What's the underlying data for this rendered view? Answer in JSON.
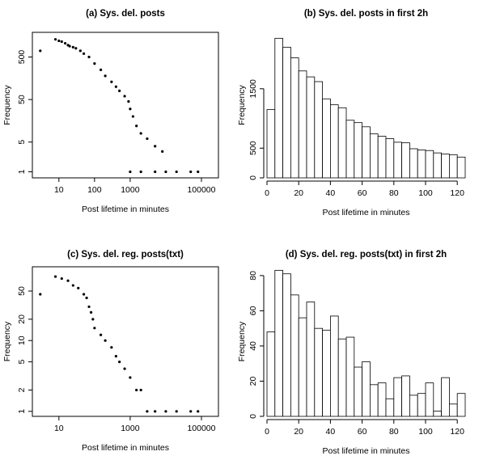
{
  "chart_data": [
    {
      "type": "scatter",
      "title": "(a) Sys. del. posts",
      "xlabel": "Post lifetime in minutes",
      "ylabel": "Frequency",
      "xscale": "log",
      "yscale": "log",
      "xlim": [
        1.8,
        300000
      ],
      "ylim": [
        0.72,
        1900
      ],
      "xticks": [
        10,
        100,
        1000,
        100000
      ],
      "xtick_labels": [
        "10",
        "100",
        "1000",
        "100000"
      ],
      "yticks": [
        1,
        5,
        50,
        500
      ],
      "ytick_labels": [
        "1",
        "5",
        "50",
        "500"
      ],
      "grid": false,
      "points": [
        [
          3,
          700
        ],
        [
          8,
          1300
        ],
        [
          10,
          1200
        ],
        [
          12,
          1150
        ],
        [
          15,
          1050
        ],
        [
          18,
          950
        ],
        [
          20,
          900
        ],
        [
          25,
          850
        ],
        [
          30,
          800
        ],
        [
          40,
          700
        ],
        [
          50,
          600
        ],
        [
          70,
          500
        ],
        [
          100,
          350
        ],
        [
          150,
          250
        ],
        [
          200,
          180
        ],
        [
          300,
          130
        ],
        [
          400,
          100
        ],
        [
          500,
          80
        ],
        [
          700,
          60
        ],
        [
          900,
          45
        ],
        [
          1000,
          30
        ],
        [
          1200,
          20
        ],
        [
          1500,
          12
        ],
        [
          2000,
          8
        ],
        [
          3000,
          6
        ],
        [
          5000,
          4
        ],
        [
          8000,
          3
        ],
        [
          1000,
          1
        ],
        [
          2000,
          1
        ],
        [
          5000,
          1
        ],
        [
          10000,
          1
        ],
        [
          20000,
          1
        ],
        [
          50000,
          1
        ],
        [
          80000,
          1
        ]
      ]
    },
    {
      "type": "bar",
      "title": "(b) Sys. del. posts in first 2h",
      "xlabel": "Post lifetime in minutes",
      "ylabel": "Frequency",
      "bin_start": 0,
      "bin_width": 5,
      "values": [
        1150,
        2350,
        2200,
        2020,
        1800,
        1700,
        1620,
        1330,
        1230,
        1180,
        970,
        930,
        860,
        740,
        700,
        660,
        600,
        590,
        490,
        470,
        460,
        420,
        400,
        390,
        350
      ],
      "xlim": [
        0,
        125
      ],
      "ylim": [
        0,
        2450
      ],
      "xticks": [
        0,
        20,
        40,
        60,
        80,
        100,
        120
      ],
      "xtick_labels": [
        "0",
        "20",
        "40",
        "60",
        "80",
        "100",
        "120"
      ],
      "yticks": [
        0,
        500,
        1500
      ],
      "ytick_labels": [
        "0",
        "500",
        "1500"
      ],
      "grid": false
    },
    {
      "type": "scatter",
      "title": "(c) Sys. del. reg. posts(txt)",
      "xlabel": "Post lifetime in minutes",
      "ylabel": "Frequency",
      "xscale": "log",
      "yscale": "log",
      "xlim": [
        1.8,
        300000
      ],
      "ylim": [
        0.85,
        110
      ],
      "xticks": [
        10,
        1000,
        100000
      ],
      "xtick_labels": [
        "10",
        "1000",
        "100000"
      ],
      "yticks": [
        1,
        2,
        5,
        10,
        20,
        50
      ],
      "ytick_labels": [
        "1",
        "2",
        "5",
        "10",
        "20",
        "50"
      ],
      "grid": false,
      "points": [
        [
          3,
          45
        ],
        [
          8,
          80
        ],
        [
          12,
          75
        ],
        [
          18,
          70
        ],
        [
          25,
          60
        ],
        [
          35,
          55
        ],
        [
          50,
          45
        ],
        [
          60,
          40
        ],
        [
          70,
          30
        ],
        [
          80,
          25
        ],
        [
          90,
          20
        ],
        [
          100,
          15
        ],
        [
          150,
          12
        ],
        [
          200,
          10
        ],
        [
          300,
          8
        ],
        [
          400,
          6
        ],
        [
          500,
          5
        ],
        [
          700,
          4
        ],
        [
          1000,
          3
        ],
        [
          1500,
          2
        ],
        [
          2000,
          2
        ],
        [
          3000,
          1
        ],
        [
          5000,
          1
        ],
        [
          10000,
          1
        ],
        [
          20000,
          1
        ],
        [
          50000,
          1
        ],
        [
          80000,
          1
        ]
      ]
    },
    {
      "type": "bar",
      "title": "(d) Sys. del. reg. posts(txt) in first 2h",
      "xlabel": "Post lifetime in minutes",
      "ylabel": "Frequency",
      "bin_start": 0,
      "bin_width": 5,
      "values": [
        48,
        83,
        81,
        69,
        56,
        65,
        50,
        49,
        57,
        44,
        45,
        28,
        31,
        18,
        19,
        10,
        22,
        23,
        12,
        13,
        19,
        3,
        22,
        7,
        13,
        17
      ],
      "xlim": [
        0,
        125
      ],
      "ylim": [
        0,
        85
      ],
      "xticks": [
        0,
        20,
        40,
        60,
        80,
        100,
        120
      ],
      "xtick_labels": [
        "0",
        "20",
        "40",
        "60",
        "80",
        "100",
        "120"
      ],
      "yticks": [
        0,
        20,
        40,
        60,
        80
      ],
      "ytick_labels": [
        "0",
        "20",
        "40",
        "60",
        "80"
      ],
      "grid": false
    }
  ]
}
